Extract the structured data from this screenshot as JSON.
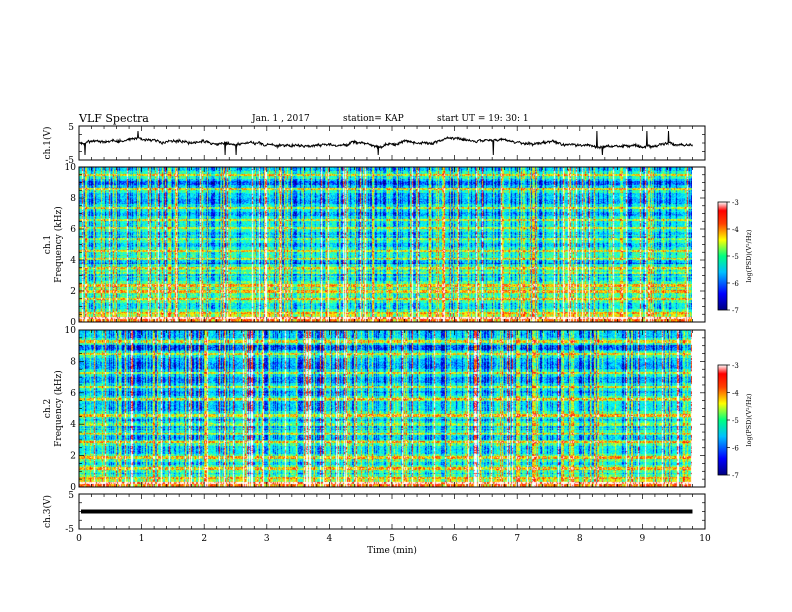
{
  "header": {
    "title": "VLF Spectra",
    "date": "Jan. 1 , 2017",
    "station": "station= KAP",
    "start": "start UT = 19: 30: 1"
  },
  "chart_data": [
    {
      "type": "line",
      "panel": "ch1-waveform",
      "ylabel": "ch.1(V)",
      "ylim": [
        -5,
        5
      ],
      "yticks": [
        "5",
        "-5"
      ],
      "xlim": [
        0,
        10
      ]
    },
    {
      "type": "heatmap",
      "panel": "ch1-spectrogram",
      "ylabel_line1": "ch.1",
      "ylabel_line2": "Frequency (kHz)",
      "ylim": [
        0,
        10
      ],
      "yticks": [
        "0",
        "2",
        "4",
        "6",
        "8",
        "10"
      ],
      "xlim": [
        0,
        9.8
      ],
      "colorbar": {
        "label": "log(PSD)(V²/Hz)",
        "range": [
          -7,
          -3
        ],
        "ticks": [
          "-3",
          "-4",
          "-5",
          "-6",
          "-7"
        ]
      },
      "noise_bands_khz": [
        0.3,
        0.6,
        1.5,
        2.0,
        2.4,
        3.2,
        3.5,
        4.1,
        4.6,
        5.4,
        6.1,
        6.6,
        7.4,
        8.6,
        9.5
      ]
    },
    {
      "type": "heatmap",
      "panel": "ch2-spectrogram",
      "ylabel_line1": "ch.2",
      "ylabel_line2": "Frequency (kHz)",
      "ylim": [
        0,
        10
      ],
      "yticks": [
        "0",
        "2",
        "4",
        "6",
        "8",
        "10"
      ],
      "xlim": [
        0,
        9.8
      ],
      "colorbar": {
        "label": "log(PSD)(V²/Hz)",
        "range": [
          -7,
          -3
        ],
        "ticks": [
          "-3",
          "-4",
          "-5",
          "-6",
          "-7"
        ]
      },
      "noise_bands_khz": [
        0.3,
        0.6,
        1.2,
        1.9,
        2.9,
        3.4,
        4.0,
        4.6,
        5.6,
        6.4,
        7.3,
        8.5,
        9.3
      ]
    },
    {
      "type": "line",
      "panel": "ch3-waveform",
      "ylabel": "ch.3(V)",
      "ylim": [
        -5,
        5
      ],
      "yticks": [
        "5",
        "-5"
      ],
      "value": 0,
      "xlim": [
        0,
        10
      ]
    }
  ],
  "xaxis": {
    "label": "Time (min)",
    "ticks": [
      "0",
      "1",
      "2",
      "3",
      "4",
      "5",
      "6",
      "7",
      "8",
      "9",
      "10"
    ]
  },
  "colors": {
    "background": "#ffffff",
    "colormap": [
      "#000080",
      "#0000ff",
      "#00a0ff",
      "#00ffff",
      "#40ff80",
      "#ffff00",
      "#ff8000",
      "#ff0000",
      "#ffffff"
    ]
  }
}
